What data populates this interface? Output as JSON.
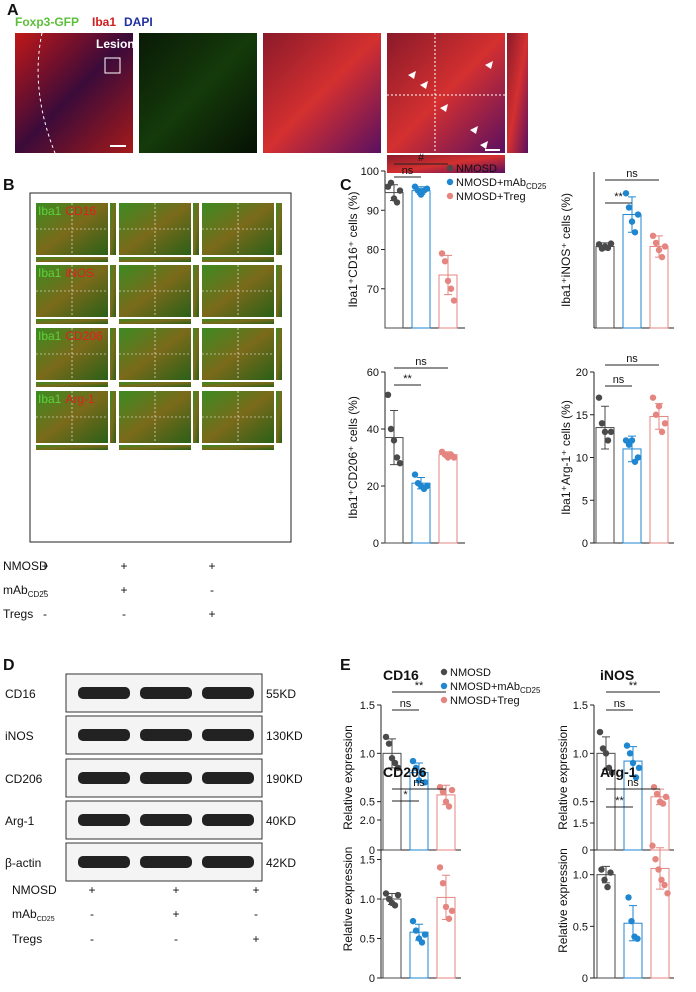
{
  "panel_labels": [
    "A",
    "B",
    "C",
    "D",
    "E"
  ],
  "panel_a": {
    "stain_labels": [
      "Foxp3-GFP",
      "Iba1",
      "DAPI"
    ],
    "region_label": "Lesion"
  },
  "panel_b": {
    "marker_labels": [
      [
        "Iba1",
        "CD16"
      ],
      [
        "Iba1",
        "iNOS"
      ],
      [
        "Iba1",
        "CD206"
      ],
      [
        "Iba1",
        "Arg-1"
      ]
    ],
    "treatments": [
      {
        "label": "NMOSD",
        "signs": [
          "+",
          "+",
          "+"
        ]
      },
      {
        "label": "mAb",
        "label_sub": "CD25",
        "signs": [
          "-",
          "+",
          "-"
        ]
      },
      {
        "label": "Tregs",
        "signs": [
          "-",
          "-",
          "+"
        ]
      }
    ]
  },
  "panel_d": {
    "bands": [
      {
        "protein": "CD16",
        "size": "55KD"
      },
      {
        "protein": "iNOS",
        "size": "130KD"
      },
      {
        "protein": "CD206",
        "size": "190KD"
      },
      {
        "protein": "Arg-1",
        "size": "40KD"
      },
      {
        "protein": "β-actin",
        "size": "42KD"
      }
    ],
    "treatments": [
      {
        "label": "NMOSD",
        "signs": [
          "+",
          "+",
          "+"
        ]
      },
      {
        "label": "mAb",
        "label_sub": "CD25",
        "signs": [
          "-",
          "+",
          "-"
        ]
      },
      {
        "label": "Tregs",
        "signs": [
          "-",
          "-",
          "+"
        ]
      }
    ]
  },
  "chart_data": [
    {
      "type": "bar",
      "y_label": "Iba1⁺CD16⁺ cells (%)",
      "ylim": [
        60,
        100
      ],
      "yticks": [
        70,
        80,
        90,
        100
      ],
      "annotations": [
        "ns",
        "#"
      ],
      "series": [
        {
          "name": "NMOSD",
          "color": "#4a4a4a",
          "value": 94.5,
          "error": 2,
          "points": [
            96,
            97,
            93,
            92,
            95
          ]
        },
        {
          "name": "NMOSD+mAb",
          "name_sub": "CD25",
          "color": "#1f86d0",
          "value": 95,
          "error": 1,
          "points": [
            96,
            95,
            94,
            95,
            95.5
          ]
        },
        {
          "name": "NMOSD+Treg",
          "color": "#e58580",
          "value": 73.5,
          "error": 5,
          "points": [
            79,
            77,
            72,
            70,
            67
          ]
        }
      ]
    },
    {
      "type": "bar",
      "y_label": "Iba1⁺iNOS⁺ cells (%)",
      "ylim": [
        0,
        22
      ],
      "annotations": [
        "ns",
        "**"
      ],
      "series": [
        {
          "color": "#4a4a4a",
          "value": 11.5,
          "error": 0.5,
          "points": [
            11.8,
            11.2,
            11.5,
            11.3,
            11.9
          ]
        },
        {
          "color": "#1f86d0",
          "value": 16,
          "error": 2.5,
          "points": [
            19,
            17,
            15,
            13.5,
            16
          ]
        },
        {
          "color": "#e58580",
          "value": 11.5,
          "error": 1.5,
          "points": [
            13,
            12,
            11,
            10,
            11.5
          ]
        }
      ]
    },
    {
      "type": "bar",
      "y_label": "Iba1⁺CD206⁺ cells (%)",
      "ylim": [
        0,
        60
      ],
      "yticks": [
        0,
        20,
        40,
        60
      ],
      "annotations": [
        "ns",
        "**"
      ],
      "series": [
        {
          "color": "#4a4a4a",
          "value": 37,
          "error": 9.5,
          "points": [
            52,
            40,
            36,
            30,
            28
          ]
        },
        {
          "color": "#1f86d0",
          "value": 21,
          "error": 2,
          "points": [
            24,
            21,
            20,
            19,
            20
          ]
        },
        {
          "color": "#e58580",
          "value": 31,
          "error": 1,
          "points": [
            32,
            31,
            30,
            31,
            30
          ]
        }
      ]
    },
    {
      "type": "bar",
      "y_label": "Iba1⁺Arg-1⁺ cells (%)",
      "ylim": [
        0,
        20
      ],
      "yticks": [
        0,
        5,
        10,
        15,
        20
      ],
      "annotations": [
        "ns",
        "ns"
      ],
      "series": [
        {
          "color": "#4a4a4a",
          "value": 13.5,
          "error": 2.5,
          "points": [
            17,
            14,
            13,
            12,
            13
          ]
        },
        {
          "color": "#1f86d0",
          "value": 11,
          "error": 1.5,
          "points": [
            12,
            11.5,
            12,
            9.5,
            10
          ]
        },
        {
          "color": "#e58580",
          "value": 14.8,
          "error": 1.5,
          "points": [
            17,
            15,
            16,
            13,
            14
          ]
        }
      ]
    },
    {
      "type": "bar",
      "title": "CD16",
      "y_label": "Relative expression",
      "ylim": [
        0,
        1.5
      ],
      "yticks": [
        0,
        0.5,
        {
          "value": 1,
          "label": "1.0"
        },
        1.5
      ],
      "annotations": [
        "**",
        "ns"
      ],
      "series": [
        {
          "name": "NMOSD",
          "color": "#4a4a4a",
          "value": 1,
          "error": 0.15,
          "points": [
            1.17,
            1.1,
            0.95,
            0.9,
            0.85
          ]
        },
        {
          "name": "NMOSD+mAb",
          "name_sub": "CD25",
          "color": "#1f86d0",
          "value": 0.8,
          "error": 0.1,
          "points": [
            0.92,
            0.85,
            0.72,
            0.8,
            0.7
          ]
        },
        {
          "name": "NMOSD+Treg",
          "color": "#e58580",
          "value": 0.57,
          "error": 0.1,
          "points": [
            0.65,
            0.6,
            0.5,
            0.45,
            0.62
          ]
        }
      ]
    },
    {
      "type": "bar",
      "title": "iNOS",
      "y_label": "Relative expression",
      "ylim": [
        0,
        1.5
      ],
      "yticks": [
        0,
        0.5,
        {
          "value": 1,
          "label": "1.0"
        },
        1.5
      ],
      "annotations": [
        "ns",
        "**"
      ],
      "series": [
        {
          "color": "#4a4a4a",
          "value": 1,
          "error": 0.17,
          "points": [
            1.22,
            1.05,
            1,
            0.85,
            0.8
          ]
        },
        {
          "color": "#1f86d0",
          "value": 0.92,
          "error": 0.15,
          "points": [
            1.08,
            1,
            0.9,
            0.75,
            0.85
          ]
        },
        {
          "color": "#e58580",
          "value": 0.55,
          "error": 0.08,
          "points": [
            0.65,
            0.58,
            0.5,
            0.48,
            0.55
          ]
        }
      ]
    },
    {
      "type": "bar",
      "title": "CD206",
      "y_label": "Relative expression",
      "ylim": [
        0,
        2
      ],
      "yticks": [
        0,
        0.5,
        {
          "value": 1,
          "label": "1.0"
        },
        1.5,
        {
          "value": 2,
          "label": "2.0"
        }
      ],
      "annotations": [
        "ns",
        "*"
      ],
      "series": [
        {
          "color": "#4a4a4a",
          "value": 1,
          "error": 0.07,
          "points": [
            1.07,
            1,
            0.95,
            0.92,
            1.05
          ]
        },
        {
          "color": "#1f86d0",
          "value": 0.58,
          "error": 0.1,
          "points": [
            0.72,
            0.6,
            0.5,
            0.45,
            0.55
          ]
        },
        {
          "color": "#e58580",
          "value": 1.02,
          "error": 0.28,
          "points": [
            1.4,
            1.2,
            0.9,
            0.75,
            0.85
          ]
        }
      ]
    },
    {
      "type": "bar",
      "title": "Arg-1",
      "y_label": "Relative expression",
      "ylim": [
        0,
        1.5
      ],
      "yticks": [
        0,
        0.5,
        {
          "value": 1,
          "label": "1.0"
        },
        1.5
      ],
      "annotations": [
        "ns",
        "**"
      ],
      "series": [
        {
          "color": "#4a4a4a",
          "value": 1,
          "error": 0.08,
          "points": [
            1.05,
            0.95,
            0.88,
            1.02
          ]
        },
        {
          "color": "#1f86d0",
          "value": 0.53,
          "error": 0.17,
          "points": [
            0.78,
            0.55,
            0.4,
            0.38
          ]
        },
        {
          "color": "#e58580",
          "value": 1.06,
          "error": 0.2,
          "points": [
            1.28,
            1.15,
            1.05,
            0.95,
            0.9,
            0.82
          ]
        }
      ]
    }
  ]
}
